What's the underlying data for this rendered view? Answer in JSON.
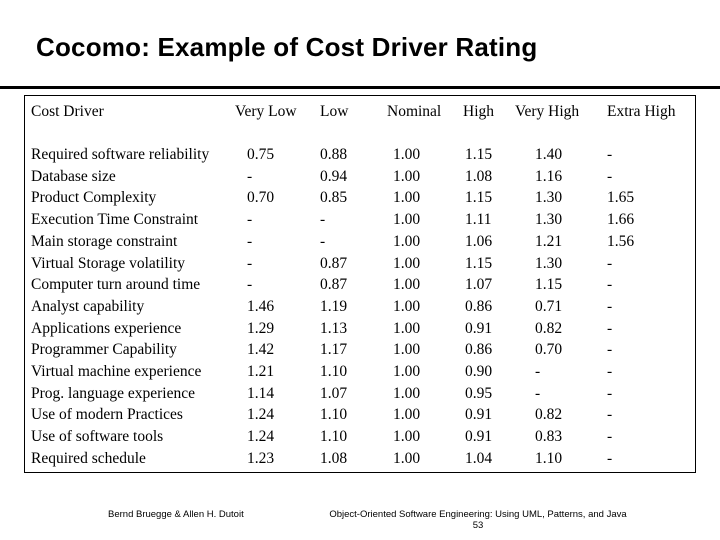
{
  "slide": {
    "title": "Cocomo: Example of Cost Driver Rating"
  },
  "table": {
    "headers": [
      "Cost Driver",
      "Very Low",
      "Low",
      "Nominal",
      "High",
      "Very High",
      "Extra High"
    ],
    "rows": [
      [
        "Required software reliability",
        "0.75",
        "0.88",
        "1.00",
        "1.15",
        "1.40",
        "-"
      ],
      [
        "Database size",
        "-",
        "0.94",
        "1.00",
        "1.08",
        "1.16",
        "-"
      ],
      [
        "Product Complexity",
        "0.70",
        "0.85",
        "1.00",
        "1.15",
        "1.30",
        "1.65"
      ],
      [
        "Execution Time Constraint",
        "-",
        "-",
        "1.00",
        "1.11",
        "1.30",
        "1.66"
      ],
      [
        "Main storage constraint",
        "-",
        "-",
        "1.00",
        "1.06",
        "1.21",
        "1.56"
      ],
      [
        "Virtual Storage volatility",
        "-",
        "0.87",
        "1.00",
        "1.15",
        "1.30",
        "-"
      ],
      [
        "Computer turn around time",
        "-",
        "0.87",
        "1.00",
        "1.07",
        "1.15",
        "-"
      ],
      [
        "Analyst capability",
        "1.46",
        "1.19",
        "1.00",
        "0.86",
        "0.71",
        "-"
      ],
      [
        "Applications experience",
        "1.29",
        "1.13",
        "1.00",
        "0.91",
        "0.82",
        "-"
      ],
      [
        "Programmer Capability",
        "1.42",
        "1.17",
        "1.00",
        "0.86",
        "0.70",
        "-"
      ],
      [
        "Virtual machine experience",
        "1.21",
        "1.10",
        "1.00",
        "0.90",
        "-",
        "-"
      ],
      [
        "Prog. language experience",
        "1.14",
        "1.07",
        "1.00",
        "0.95",
        "-",
        "-"
      ],
      [
        "Use of modern Practices",
        "1.24",
        "1.10",
        "1.00",
        "0.91",
        "0.82",
        "-"
      ],
      [
        "Use of software tools",
        "1.24",
        "1.10",
        "1.00",
        "0.91",
        "0.83",
        "-"
      ],
      [
        "Required schedule",
        "1.23",
        "1.08",
        "1.00",
        "1.04",
        "1.10",
        "-"
      ]
    ]
  },
  "footer": {
    "authors": "Bernd Bruegge & Allen H. Dutoit",
    "book": "Object-Oriented Software Engineering: Using UML, Patterns, and Java",
    "page_number": "53"
  }
}
